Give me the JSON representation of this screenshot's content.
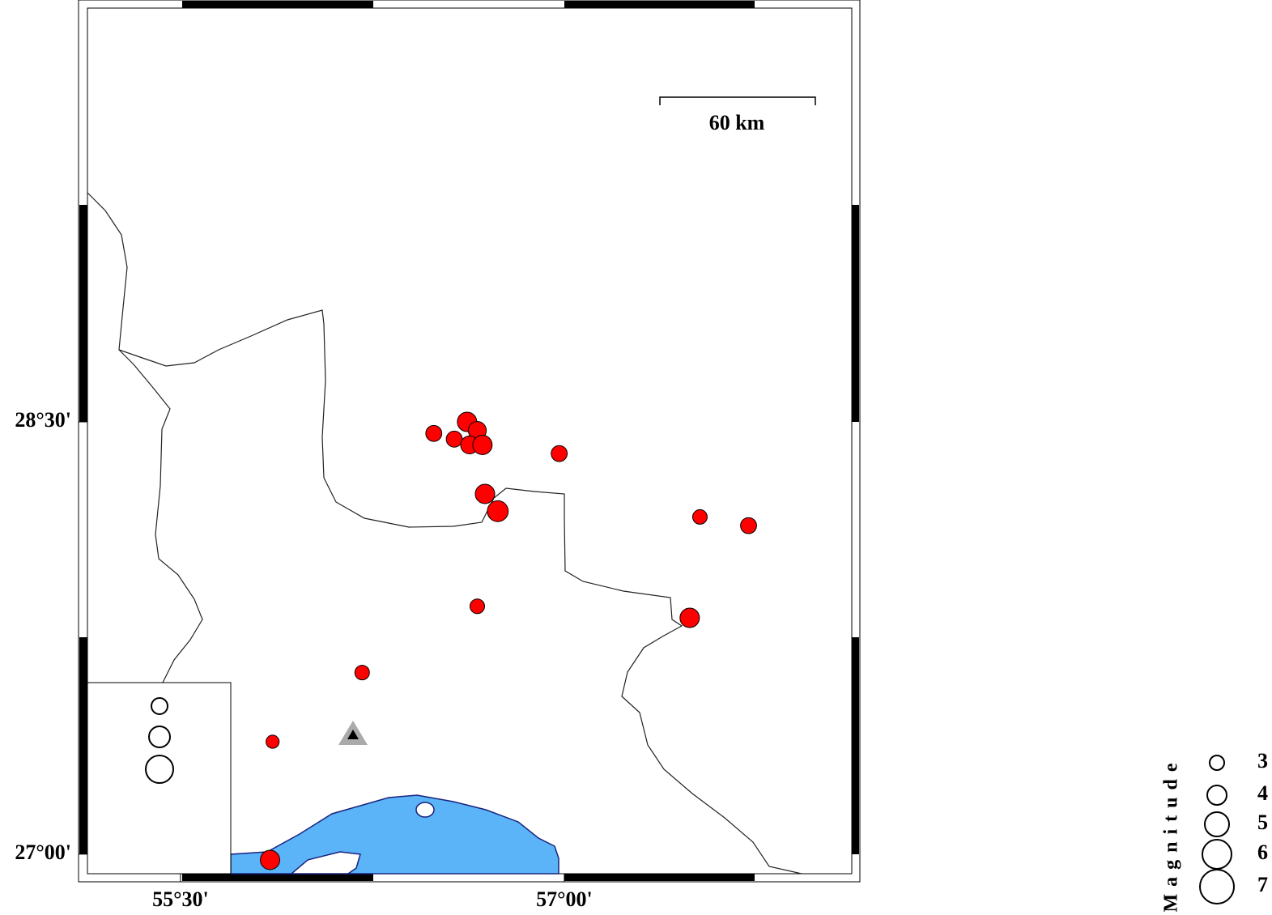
{
  "map": {
    "xlim": [
      55.108,
      58.155
    ],
    "ylim": [
      26.904,
      29.961
    ],
    "xticks": [
      {
        "value": 55.5,
        "label": "55°30'"
      },
      {
        "value": 57.0,
        "label": "57°00'"
      }
    ],
    "yticks": [
      {
        "value": 28.5,
        "label": "28°30'"
      },
      {
        "value": 27.0,
        "label": "27°00'"
      }
    ],
    "scale_label": "60 km",
    "event_color": "#ff0000",
    "events": {
      "lon": [
        56.62,
        56.66,
        56.49,
        56.57,
        56.63,
        56.68,
        56.98,
        56.69,
        56.74,
        57.53,
        57.72,
        56.66,
        57.49,
        56.21,
        55.86,
        55.85
      ],
      "lat": [
        28.5,
        28.47,
        28.46,
        28.44,
        28.42,
        28.42,
        28.39,
        28.25,
        28.19,
        28.17,
        28.14,
        27.86,
        27.82,
        27.63,
        27.39,
        26.98
      ],
      "magnitude": [
        4.0,
        3.7,
        3.3,
        3.3,
        3.7,
        4.0,
        3.3,
        4.0,
        4.3,
        3.0,
        3.3,
        3.0,
        4.0,
        3.0,
        2.7,
        4.0
      ]
    },
    "legend": {
      "title": "Magnitude",
      "values": [
        3,
        4,
        5,
        6,
        7
      ]
    }
  }
}
